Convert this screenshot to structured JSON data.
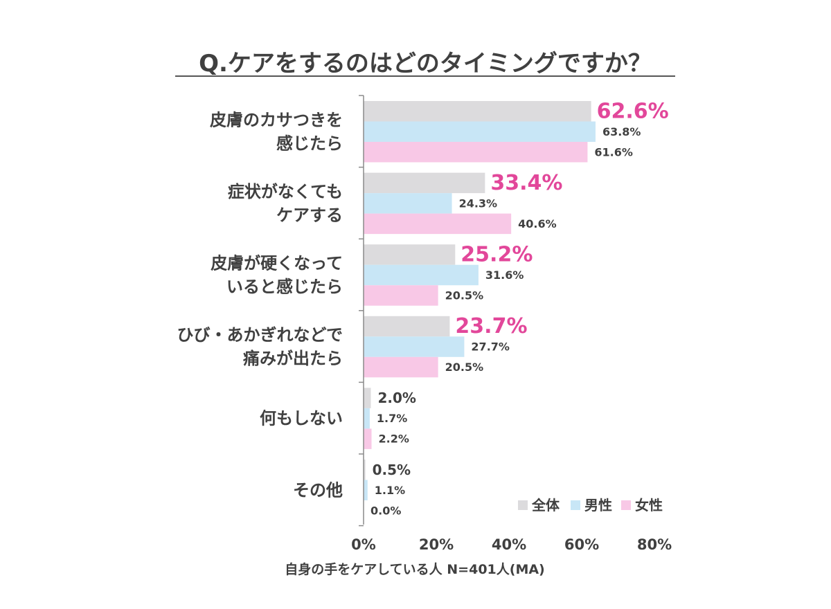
{
  "colors": {
    "total": "#dcdbdd",
    "male": "#c8e6f6",
    "female": "#f8c8e6",
    "highlight": "#e2479a",
    "text": "#404040",
    "axis": "#8a8a8a"
  },
  "chart_data": {
    "type": "bar",
    "orientation": "horizontal",
    "title": "Q.ケアをするのはどのタイミングですか？",
    "footnote": "自身の手をケアしている人 N=401人(MA)",
    "xlim": [
      0,
      80
    ],
    "xticks": [
      0,
      20,
      40,
      60,
      80
    ],
    "xtick_labels": [
      "0%",
      "20%",
      "40%",
      "60%",
      "80%"
    ],
    "legend_position": "bottom-right",
    "categories": [
      [
        "皮膚のカサつきを",
        "感じたら"
      ],
      [
        "症状がなくても",
        "ケアする"
      ],
      [
        "皮膚が硬くなって",
        "いると感じたら"
      ],
      [
        "ひび・あかぎれなどで",
        "痛みが出たら"
      ],
      [
        "何もしない"
      ],
      [
        "その他"
      ]
    ],
    "series": [
      {
        "name": "全体",
        "color_key": "total",
        "values": [
          62.6,
          33.4,
          25.2,
          23.7,
          2.0,
          0.5
        ],
        "labels": [
          "62.6%",
          "33.4%",
          "25.2%",
          "23.7%",
          "2.0%",
          "0.5%"
        ]
      },
      {
        "name": "男性",
        "color_key": "male",
        "values": [
          63.8,
          24.3,
          31.6,
          27.7,
          1.7,
          1.1
        ],
        "labels": [
          "63.8%",
          "24.3%",
          "31.6%",
          "27.7%",
          "1.7%",
          "1.1%"
        ]
      },
      {
        "name": "女性",
        "color_key": "female",
        "values": [
          61.6,
          40.6,
          20.5,
          20.5,
          2.2,
          0.0
        ],
        "labels": [
          "61.6%",
          "40.6%",
          "20.5%",
          "20.5%",
          "2.2%",
          "0.0%"
        ]
      }
    ]
  }
}
